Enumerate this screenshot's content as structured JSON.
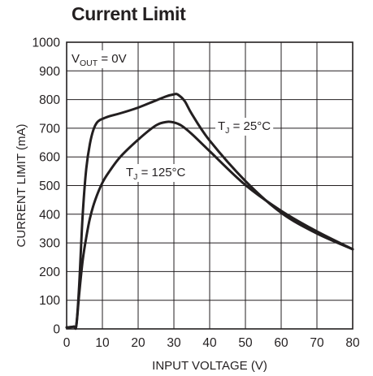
{
  "title": "Current Limit",
  "chart_data": {
    "type": "line",
    "title": "Current Limit",
    "xlabel": "INPUT VOLTAGE (V)",
    "ylabel": "CURRENT LIMIT (mA)",
    "xlim": [
      0,
      80
    ],
    "ylim": [
      0,
      1000
    ],
    "xticks": [
      0,
      10,
      20,
      30,
      40,
      50,
      60,
      70,
      80
    ],
    "yticks": [
      0,
      100,
      200,
      300,
      400,
      500,
      600,
      700,
      800,
      900,
      1000
    ],
    "grid": true,
    "annotations": [
      {
        "main": "V",
        "sub": "OUT",
        "rest": " = 0V"
      },
      {
        "main": "T",
        "sub": "J",
        "rest": " = 25°C"
      },
      {
        "main": "T",
        "sub": "J",
        "rest": " = 125°C"
      }
    ],
    "series": [
      {
        "key": "tj-25c",
        "x": [
          0,
          2,
          2.7,
          3.5,
          4.5,
          5.5,
          6.5,
          7.5,
          8.5,
          9.5,
          10.5,
          12,
          15,
          20,
          25,
          28,
          30,
          31,
          33,
          35,
          40,
          50,
          60,
          70,
          80
        ],
        "values": [
          5,
          8,
          12,
          150,
          400,
          560,
          645,
          695,
          720,
          730,
          735,
          742,
          752,
          772,
          797,
          812,
          818,
          818,
          795,
          750,
          657,
          516,
          405,
          333,
          278
        ]
      },
      {
        "key": "tj-125c",
        "x": [
          0,
          2,
          2.7,
          3.5,
          4.5,
          5.5,
          6.5,
          8,
          10,
          12,
          15,
          20,
          25,
          28,
          30,
          32,
          35,
          40,
          50,
          60,
          70,
          80
        ],
        "values": [
          5,
          8,
          12,
          120,
          240,
          320,
          385,
          450,
          510,
          550,
          600,
          660,
          710,
          722,
          720,
          710,
          680,
          620,
          502,
          412,
          340,
          278
        ]
      }
    ]
  }
}
